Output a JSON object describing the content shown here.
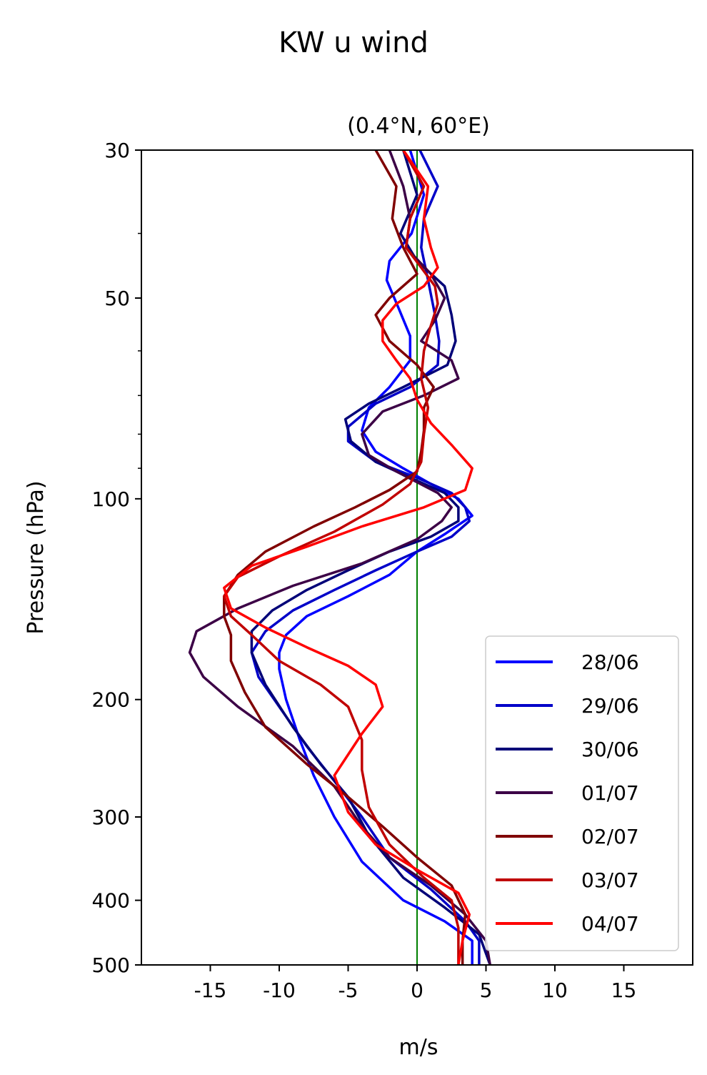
{
  "chart_data": {
    "type": "line",
    "title": "KW u wind",
    "subtitle": "(0.4°N, 60°E)",
    "xlabel": "m/s",
    "ylabel": "Pressure (hPa)",
    "xlim": [
      -20,
      20
    ],
    "ylim": [
      500,
      30
    ],
    "y_scale": "log",
    "x_ticks": [
      -15,
      -10,
      -5,
      0,
      5,
      10,
      15
    ],
    "x_tick_labels": [
      "-15",
      "-10",
      "-5",
      "0",
      "5",
      "10",
      "15"
    ],
    "y_ticks": [
      30,
      50,
      100,
      200,
      300,
      400,
      500
    ],
    "y_tick_labels": [
      "30",
      "50",
      "100",
      "200",
      "300",
      "400",
      "500"
    ],
    "y_minor_ticks": [
      40,
      60,
      70,
      80,
      90
    ],
    "reference_line": {
      "x": 0,
      "color": "#008000"
    },
    "grid": false,
    "legend_position": "lower-right",
    "series": [
      {
        "name": "28/06",
        "color": "#0000ff",
        "points": [
          [
            -0.5,
            30
          ],
          [
            0.5,
            35
          ],
          [
            -0.4,
            40
          ],
          [
            -2,
            44
          ],
          [
            -2.2,
            47
          ],
          [
            -1.3,
            52
          ],
          [
            -0.5,
            57
          ],
          [
            -0.5,
            62
          ],
          [
            -2,
            68
          ],
          [
            -3.5,
            73
          ],
          [
            -4,
            79
          ],
          [
            -3,
            85
          ],
          [
            -1,
            90
          ],
          [
            1,
            95
          ],
          [
            3,
            100
          ],
          [
            4,
            106
          ],
          [
            2,
            113
          ],
          [
            0,
            120
          ],
          [
            -2,
            130
          ],
          [
            -5,
            140
          ],
          [
            -8,
            150
          ],
          [
            -9.5,
            160
          ],
          [
            -10,
            170
          ],
          [
            -10,
            180
          ],
          [
            -9.5,
            200
          ],
          [
            -8.5,
            230
          ],
          [
            -7.5,
            260
          ],
          [
            -6,
            300
          ],
          [
            -4,
            350
          ],
          [
            -1,
            400
          ],
          [
            2,
            430
          ],
          [
            4,
            460
          ],
          [
            4,
            500
          ]
        ]
      },
      {
        "name": "29/06",
        "color": "#0000c8",
        "points": [
          [
            0.2,
            30
          ],
          [
            1.5,
            34
          ],
          [
            0.5,
            38
          ],
          [
            0.3,
            42
          ],
          [
            0.8,
            47
          ],
          [
            1.3,
            53
          ],
          [
            1.6,
            58
          ],
          [
            1.5,
            63
          ],
          [
            -0.5,
            68
          ],
          [
            -3,
            72
          ],
          [
            -5,
            78
          ],
          [
            -5,
            82
          ],
          [
            -3,
            88
          ],
          [
            0,
            93
          ],
          [
            2.5,
            98
          ],
          [
            3.5,
            103
          ],
          [
            3.8,
            108
          ],
          [
            2.5,
            114
          ],
          [
            0,
            120
          ],
          [
            -3,
            128
          ],
          [
            -6,
            137
          ],
          [
            -9,
            147
          ],
          [
            -11,
            158
          ],
          [
            -12,
            170
          ],
          [
            -11.5,
            185
          ],
          [
            -10,
            205
          ],
          [
            -8,
            235
          ],
          [
            -6,
            265
          ],
          [
            -4,
            300
          ],
          [
            -2,
            345
          ],
          [
            1,
            385
          ],
          [
            3.5,
            430
          ],
          [
            4.5,
            460
          ],
          [
            4.5,
            500
          ]
        ]
      },
      {
        "name": "30/06",
        "color": "#000078",
        "points": [
          [
            -1,
            30
          ],
          [
            0,
            35
          ],
          [
            -1.2,
            40
          ],
          [
            0,
            44
          ],
          [
            2,
            48
          ],
          [
            2.5,
            53
          ],
          [
            2.8,
            58
          ],
          [
            2.2,
            63
          ],
          [
            -1,
            68
          ],
          [
            -3.5,
            72
          ],
          [
            -5.2,
            76
          ],
          [
            -4.8,
            82
          ],
          [
            -3,
            88
          ],
          [
            -0.5,
            93
          ],
          [
            2,
            98
          ],
          [
            3,
            103
          ],
          [
            3,
            108
          ],
          [
            1,
            114
          ],
          [
            -2,
            120
          ],
          [
            -5,
            128
          ],
          [
            -8,
            137
          ],
          [
            -10.5,
            147
          ],
          [
            -12,
            158
          ],
          [
            -12,
            170
          ],
          [
            -11,
            190
          ],
          [
            -9,
            220
          ],
          [
            -7,
            250
          ],
          [
            -5,
            280
          ],
          [
            -3.5,
            320
          ],
          [
            -1,
            370
          ],
          [
            2,
            410
          ],
          [
            4.5,
            450
          ],
          [
            5.3,
            500
          ]
        ]
      },
      {
        "name": "01/07",
        "color": "#3c0046",
        "points": [
          [
            -2,
            30
          ],
          [
            -1,
            34
          ],
          [
            -0.5,
            38
          ],
          [
            -0.8,
            42
          ],
          [
            1,
            46
          ],
          [
            2,
            50
          ],
          [
            1.3,
            54
          ],
          [
            0.3,
            58
          ],
          [
            2.5,
            62
          ],
          [
            3,
            66
          ],
          [
            0.5,
            70
          ],
          [
            -2.5,
            74
          ],
          [
            -4,
            80
          ],
          [
            -3.5,
            86
          ],
          [
            -1.5,
            91
          ],
          [
            1.5,
            98
          ],
          [
            2.5,
            103
          ],
          [
            1.8,
            108
          ],
          [
            0,
            115
          ],
          [
            -4,
            125
          ],
          [
            -9,
            135
          ],
          [
            -13,
            146
          ],
          [
            -16,
            158
          ],
          [
            -16.5,
            170
          ],
          [
            -15.5,
            185
          ],
          [
            -13,
            205
          ],
          [
            -9,
            235
          ],
          [
            -6,
            270
          ],
          [
            -4,
            310
          ],
          [
            -2,
            345
          ],
          [
            1,
            380
          ],
          [
            3.5,
            420
          ],
          [
            5,
            460
          ],
          [
            5.3,
            500
          ]
        ]
      },
      {
        "name": "02/07",
        "color": "#800000",
        "points": [
          [
            -3,
            30
          ],
          [
            -1.5,
            34
          ],
          [
            -1.8,
            38
          ],
          [
            -1,
            42
          ],
          [
            0,
            46
          ],
          [
            -2,
            50
          ],
          [
            -3,
            53
          ],
          [
            -2,
            58
          ],
          [
            0,
            63
          ],
          [
            1.2,
            68
          ],
          [
            0.5,
            73
          ],
          [
            0.5,
            79
          ],
          [
            0.3,
            85
          ],
          [
            0,
            91
          ],
          [
            -2,
            97
          ],
          [
            -4.5,
            103
          ],
          [
            -7.5,
            110
          ],
          [
            -11,
            120
          ],
          [
            -13,
            130
          ],
          [
            -14,
            140
          ],
          [
            -14,
            150
          ],
          [
            -13.5,
            160
          ],
          [
            -13.5,
            175
          ],
          [
            -12.5,
            195
          ],
          [
            -11,
            220
          ],
          [
            -8,
            250
          ],
          [
            -5,
            280
          ],
          [
            -2.5,
            310
          ],
          [
            0,
            345
          ],
          [
            2.5,
            380
          ],
          [
            3.5,
            420
          ],
          [
            3.3,
            460
          ],
          [
            3.3,
            500
          ]
        ]
      },
      {
        "name": "03/07",
        "color": "#c00000",
        "points": [
          [
            -1,
            30
          ],
          [
            0.5,
            34
          ],
          [
            -0.5,
            38
          ],
          [
            -0.8,
            42
          ],
          [
            0.3,
            45
          ],
          [
            1.3,
            48
          ],
          [
            1.5,
            51
          ],
          [
            1,
            55
          ],
          [
            0.5,
            60
          ],
          [
            0.3,
            66
          ],
          [
            0.8,
            73
          ],
          [
            0.5,
            80
          ],
          [
            0.3,
            88
          ],
          [
            -0.5,
            95
          ],
          [
            -2.5,
            102
          ],
          [
            -6,
            112
          ],
          [
            -10,
            122
          ],
          [
            -13,
            131
          ],
          [
            -14,
            140
          ],
          [
            -13.5,
            150
          ],
          [
            -12,
            160
          ],
          [
            -10,
            175
          ],
          [
            -7,
            190
          ],
          [
            -5,
            205
          ],
          [
            -4,
            230
          ],
          [
            -4,
            255
          ],
          [
            -3.5,
            290
          ],
          [
            -2,
            330
          ],
          [
            0.5,
            370
          ],
          [
            2.5,
            400
          ],
          [
            3,
            440
          ],
          [
            3,
            470
          ],
          [
            3,
            500
          ]
        ]
      },
      {
        "name": "04/07",
        "color": "#ff0000",
        "points": [
          [
            -1,
            30
          ],
          [
            0.8,
            34
          ],
          [
            0.5,
            38
          ],
          [
            1,
            42
          ],
          [
            1.5,
            45
          ],
          [
            0.5,
            48
          ],
          [
            -1.5,
            51
          ],
          [
            -2.5,
            54
          ],
          [
            -2.5,
            58
          ],
          [
            -1.5,
            62
          ],
          [
            -0.5,
            66
          ],
          [
            0,
            71
          ],
          [
            1,
            77
          ],
          [
            2.5,
            83
          ],
          [
            4,
            90
          ],
          [
            3.5,
            97
          ],
          [
            0.5,
            103
          ],
          [
            -4,
            110
          ],
          [
            -8,
            118
          ],
          [
            -12,
            126
          ],
          [
            -14,
            136
          ],
          [
            -13.5,
            146
          ],
          [
            -11,
            156
          ],
          [
            -8,
            167
          ],
          [
            -5,
            178
          ],
          [
            -3,
            190
          ],
          [
            -2.5,
            205
          ],
          [
            -4,
            225
          ],
          [
            -6,
            260
          ],
          [
            -5,
            295
          ],
          [
            -3,
            330
          ],
          [
            0,
            360
          ],
          [
            3,
            390
          ],
          [
            3.8,
            420
          ],
          [
            3.3,
            460
          ],
          [
            3,
            500
          ]
        ]
      }
    ]
  }
}
